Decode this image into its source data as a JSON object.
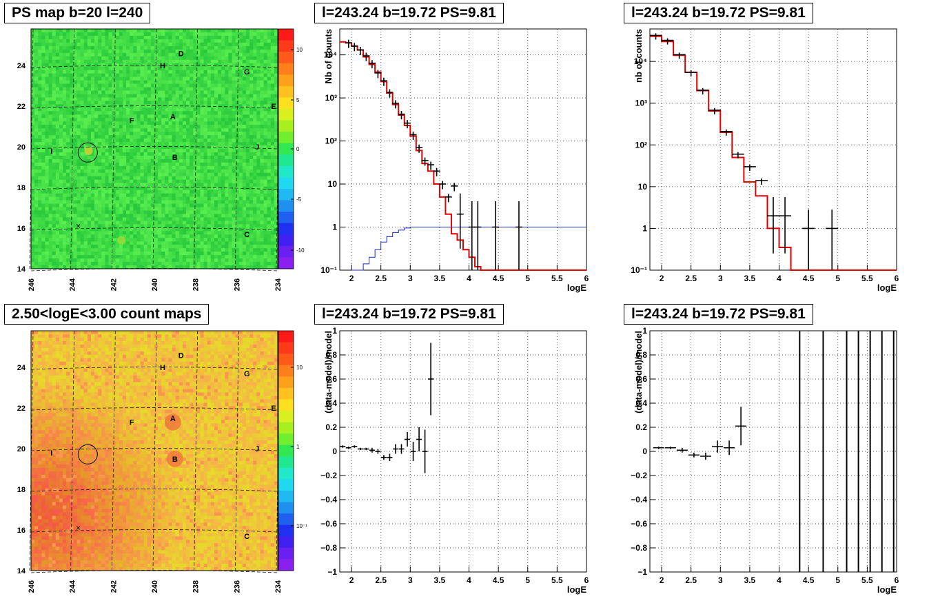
{
  "panels": {
    "ps_map": {
      "title": "PS map b=20 l=240",
      "x_ticks": [
        "246",
        "244",
        "242",
        "240",
        "238",
        "236",
        "234"
      ],
      "y_ticks": [
        "14",
        "16",
        "18",
        "20",
        "22",
        "24"
      ],
      "colorbar_ticks": [
        "10",
        "5",
        "0",
        "-5",
        "-10"
      ],
      "source_labels": [
        "D",
        "H",
        "G",
        "E",
        "F",
        "A",
        "I",
        "B",
        "J",
        "C"
      ]
    },
    "spectrum_left": {
      "title": "l=243.24 b=19.72 PS=9.81",
      "ylabel": "Nb of counts",
      "xlabel": "logE"
    },
    "spectrum_right": {
      "title": "l=243.24 b=19.72 PS=9.81",
      "ylabel": "nb of counts",
      "xlabel": "logE"
    },
    "count_map": {
      "title": "2.50<logE<3.00 count maps",
      "x_ticks": [
        "246",
        "244",
        "242",
        "240",
        "238",
        "236",
        "234"
      ],
      "y_ticks": [
        "14",
        "16",
        "18",
        "20",
        "22",
        "24"
      ],
      "colorbar_ticks": [
        "10",
        "1",
        "10⁻¹"
      ],
      "source_labels": [
        "D",
        "H",
        "G",
        "E",
        "F",
        "A",
        "I",
        "B",
        "J",
        "C"
      ]
    },
    "residual_left": {
      "title": "l=243.24 b=19.72 PS=9.81",
      "ylabel": "(data-model)/model",
      "xlabel": "logE"
    },
    "residual_right": {
      "title": "l=243.24 b=19.72 PS=9.81",
      "ylabel": "(data-model)/model",
      "xlabel": "logE"
    }
  },
  "chart_data": [
    {
      "type": "heatmap",
      "title": "PS map b=20 l=240",
      "x_range": [
        246,
        234
      ],
      "y_range": [
        14,
        25.8
      ],
      "z_range": [
        -12,
        12
      ],
      "colors": {
        "background": "#33e04a",
        "circle": "#000000"
      },
      "sources": [
        {
          "label": "D",
          "l": 238.7,
          "b": 24.6
        },
        {
          "label": "H",
          "l": 239.6,
          "b": 24.0
        },
        {
          "label": "G",
          "l": 235.5,
          "b": 23.7
        },
        {
          "label": "E",
          "l": 234.2,
          "b": 22.0
        },
        {
          "label": "F",
          "l": 241.1,
          "b": 21.3
        },
        {
          "label": "A",
          "l": 239.1,
          "b": 21.5
        },
        {
          "label": "I",
          "l": 245.0,
          "b": 19.8
        },
        {
          "label": "B",
          "l": 239.0,
          "b": 19.5
        },
        {
          "label": "J",
          "l": 235.0,
          "b": 20.0
        },
        {
          "label": "C",
          "l": 235.5,
          "b": 15.7
        }
      ],
      "circle": {
        "l": 243.24,
        "b": 19.72
      }
    },
    {
      "type": "line",
      "title": "l=243.24 b=19.72 PS=9.81",
      "xlabel": "logE",
      "ylabel": "Nb of counts",
      "xlim": [
        1.8,
        6
      ],
      "ylim": [
        0.1,
        40000
      ],
      "yscale": "log",
      "model_red": [
        [
          1.8,
          20000
        ],
        [
          1.9,
          19000
        ],
        [
          2.0,
          16000
        ],
        [
          2.1,
          13000
        ],
        [
          2.2,
          9000
        ],
        [
          2.3,
          6000
        ],
        [
          2.4,
          4000
        ],
        [
          2.5,
          2400
        ],
        [
          2.6,
          1300
        ],
        [
          2.7,
          700
        ],
        [
          2.8,
          400
        ],
        [
          2.9,
          230
        ],
        [
          3.0,
          130
        ],
        [
          3.1,
          60
        ],
        [
          3.2,
          30
        ],
        [
          3.3,
          20
        ],
        [
          3.4,
          10
        ],
        [
          3.5,
          5
        ],
        [
          3.6,
          2
        ],
        [
          3.7,
          0.7
        ],
        [
          3.8,
          0.5
        ],
        [
          3.9,
          0.3
        ],
        [
          4.0,
          0.2
        ],
        [
          4.1,
          0.12
        ],
        [
          4.2,
          0.1
        ],
        [
          6.0,
          0.1
        ]
      ],
      "model_blue": [
        [
          2.0,
          0.1
        ],
        [
          2.2,
          0.14
        ],
        [
          2.3,
          0.2
        ],
        [
          2.4,
          0.3
        ],
        [
          2.5,
          0.45
        ],
        [
          2.6,
          0.6
        ],
        [
          2.7,
          0.75
        ],
        [
          2.8,
          0.85
        ],
        [
          2.9,
          0.95
        ],
        [
          3.0,
          1.0
        ],
        [
          6.0,
          1.0
        ]
      ],
      "data_points": [
        [
          1.95,
          19000
        ],
        [
          2.05,
          16000
        ],
        [
          2.15,
          13000
        ],
        [
          2.25,
          9500
        ],
        [
          2.35,
          6400
        ],
        [
          2.45,
          3800
        ],
        [
          2.55,
          2500
        ],
        [
          2.65,
          1350
        ],
        [
          2.75,
          750
        ],
        [
          2.85,
          420
        ],
        [
          2.95,
          260
        ],
        [
          3.05,
          140
        ],
        [
          3.15,
          70
        ],
        [
          3.25,
          35
        ],
        [
          3.35,
          28
        ],
        [
          3.45,
          20
        ],
        [
          3.55,
          10
        ],
        [
          3.65,
          5
        ],
        [
          3.75,
          9
        ],
        [
          3.85,
          2
        ],
        [
          4.05,
          1
        ],
        [
          4.15,
          1
        ],
        [
          4.45,
          1
        ],
        [
          4.85,
          1
        ]
      ]
    },
    {
      "type": "line",
      "title": "l=243.24 b=19.72 PS=9.81",
      "xlabel": "logE",
      "ylabel": "nb of counts",
      "xlim": [
        1.8,
        6
      ],
      "ylim": [
        0.1,
        60000
      ],
      "yscale": "log",
      "model_red": [
        [
          1.8,
          40000
        ],
        [
          2.0,
          30000
        ],
        [
          2.2,
          14000
        ],
        [
          2.4,
          5500
        ],
        [
          2.6,
          2000
        ],
        [
          2.8,
          650
        ],
        [
          3.0,
          200
        ],
        [
          3.2,
          50
        ],
        [
          3.4,
          13
        ],
        [
          3.6,
          6
        ],
        [
          3.8,
          1
        ],
        [
          4.0,
          0.35
        ],
        [
          4.2,
          0.1
        ],
        [
          6.0,
          0.1
        ]
      ],
      "data_points": [
        [
          1.9,
          42000
        ],
        [
          2.1,
          32000
        ],
        [
          2.3,
          14500
        ],
        [
          2.5,
          5500
        ],
        [
          2.7,
          2050
        ],
        [
          2.9,
          680
        ],
        [
          3.1,
          210
        ],
        [
          3.3,
          60
        ],
        [
          3.5,
          30
        ],
        [
          3.7,
          14
        ],
        [
          3.9,
          2
        ],
        [
          4.1,
          2
        ],
        [
          4.5,
          1
        ],
        [
          4.9,
          1
        ]
      ]
    },
    {
      "type": "heatmap",
      "title": "2.50<logE<3.00 count maps",
      "x_range": [
        246,
        234
      ],
      "y_range": [
        14,
        25.8
      ],
      "z_range": [
        0.05,
        30
      ],
      "zscale": "log",
      "colors": {
        "background": "#e9d93a",
        "hot": "#f08040"
      },
      "sources": [
        {
          "label": "D",
          "l": 238.7,
          "b": 24.6
        },
        {
          "label": "H",
          "l": 239.6,
          "b": 24.0
        },
        {
          "label": "G",
          "l": 235.5,
          "b": 23.7
        },
        {
          "label": "E",
          "l": 234.2,
          "b": 22.0
        },
        {
          "label": "F",
          "l": 241.1,
          "b": 21.3
        },
        {
          "label": "A",
          "l": 239.1,
          "b": 21.5
        },
        {
          "label": "I",
          "l": 245.0,
          "b": 19.8
        },
        {
          "label": "B",
          "l": 239.0,
          "b": 19.5
        },
        {
          "label": "J",
          "l": 235.0,
          "b": 20.0
        },
        {
          "label": "C",
          "l": 235.5,
          "b": 15.7
        }
      ],
      "circle": {
        "l": 243.24,
        "b": 19.72
      }
    },
    {
      "type": "scatter",
      "title": "l=243.24 b=19.72 PS=9.81",
      "xlabel": "logE",
      "ylabel": "(data-model)/model",
      "xlim": [
        1.8,
        6
      ],
      "ylim": [
        -1,
        1
      ],
      "points": [
        [
          1.85,
          0.04,
          0.01
        ],
        [
          1.95,
          0.03,
          0.01
        ],
        [
          2.05,
          0.04,
          0.01
        ],
        [
          2.15,
          0.02,
          0.01
        ],
        [
          2.25,
          0.02,
          0.01
        ],
        [
          2.35,
          0.01,
          0.02
        ],
        [
          2.45,
          0.0,
          0.02
        ],
        [
          2.55,
          -0.05,
          0.02
        ],
        [
          2.65,
          -0.05,
          0.03
        ],
        [
          2.75,
          0.02,
          0.04
        ],
        [
          2.85,
          0.02,
          0.04
        ],
        [
          2.95,
          0.1,
          0.06
        ],
        [
          3.05,
          0.0,
          0.08
        ],
        [
          3.15,
          0.1,
          0.1
        ],
        [
          3.25,
          0.0,
          0.18
        ],
        [
          3.35,
          0.6,
          0.3
        ]
      ]
    },
    {
      "type": "scatter",
      "title": "l=243.24 b=19.72 PS=9.81",
      "xlabel": "logE",
      "ylabel": "(data-model)/model",
      "xlim": [
        1.8,
        6
      ],
      "ylim": [
        -1,
        1
      ],
      "points": [
        [
          1.95,
          0.03,
          0.01
        ],
        [
          2.15,
          0.03,
          0.01
        ],
        [
          2.35,
          0.01,
          0.02
        ],
        [
          2.55,
          -0.03,
          0.02
        ],
        [
          2.75,
          -0.04,
          0.03
        ],
        [
          2.95,
          0.04,
          0.05
        ],
        [
          3.15,
          0.03,
          0.06
        ],
        [
          3.35,
          0.21,
          0.16
        ]
      ],
      "vertical_lines_x": [
        4.35,
        4.75,
        5.15,
        5.35,
        5.55,
        5.75,
        5.95
      ]
    }
  ]
}
